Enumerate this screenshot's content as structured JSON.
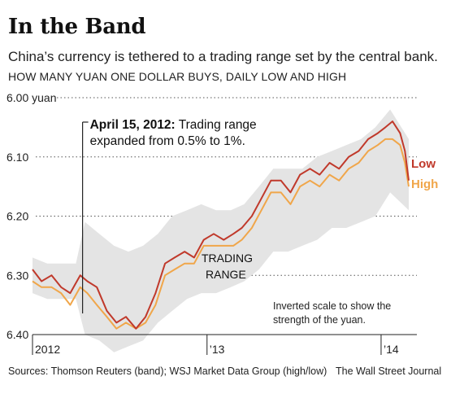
{
  "header": {
    "title": "In the Band",
    "subtitle": "China’s currency is tethered to a trading range set by the central bank.",
    "subhead": "HOW MANY YUAN ONE DOLLAR BUYS, DAILY LOW AND HIGH"
  },
  "footer": {
    "source": "Sources: Thomson Reuters (band); WSJ Market Data Group (high/low)",
    "credit": "The Wall Street Journal"
  },
  "chart_data": {
    "type": "line",
    "title": "In the Band",
    "ylabel": "yuan",
    "ylim": [
      6.0,
      6.4
    ],
    "y_inverted": true,
    "grid": true,
    "xlim": [
      "2012-01-01",
      "2014-02-28"
    ],
    "y_ticks": [
      {
        "value": 6.0,
        "label": "6.00 yuan"
      },
      {
        "value": 6.1,
        "label": "6.10"
      },
      {
        "value": 6.2,
        "label": "6.20"
      },
      {
        "value": 6.3,
        "label": "6.30"
      },
      {
        "value": 6.4,
        "label": "6.40"
      }
    ],
    "x_ticks": [
      {
        "value": "2012-01-01",
        "label": "2012"
      },
      {
        "value": "2013-01-01",
        "label": "’13"
      },
      {
        "value": "2014-01-01",
        "label": "’14"
      }
    ],
    "legend": [
      {
        "name": "Low",
        "color": "#c0392b"
      },
      {
        "name": "High",
        "color": "#f0a64a"
      }
    ],
    "band_label": "TRADING RANGE",
    "annotations": [
      {
        "date": "2012-04-15",
        "bold": "April 15, 2012:",
        "text": " Trading range",
        "text2": "expanded from 0.5% to 1%."
      },
      {
        "text": "Inverted scale to show the",
        "text2": "strength of the yuan."
      }
    ],
    "colors": {
      "low": "#c0392b",
      "high": "#f0a64a",
      "band": "#e4e4e4",
      "grid": "#555555"
    },
    "series": [
      {
        "name": "Low",
        "x": [
          "2012-01-01",
          "2012-01-20",
          "2012-02-10",
          "2012-03-01",
          "2012-03-20",
          "2012-04-10",
          "2012-04-25",
          "2012-05-15",
          "2012-06-05",
          "2012-06-25",
          "2012-07-15",
          "2012-08-05",
          "2012-08-25",
          "2012-09-15",
          "2012-10-05",
          "2012-10-25",
          "2012-11-15",
          "2012-12-05",
          "2012-12-25",
          "2013-01-15",
          "2013-02-05",
          "2013-02-25",
          "2013-03-15",
          "2013-04-05",
          "2013-04-25",
          "2013-05-15",
          "2013-06-05",
          "2013-06-25",
          "2013-07-15",
          "2013-08-05",
          "2013-08-25",
          "2013-09-15",
          "2013-10-05",
          "2013-10-25",
          "2013-11-15",
          "2013-12-05",
          "2013-12-25",
          "2014-01-10",
          "2014-01-25",
          "2014-02-10",
          "2014-02-20",
          "2014-02-28"
        ],
        "values": [
          6.29,
          6.31,
          6.3,
          6.32,
          6.33,
          6.3,
          6.31,
          6.32,
          6.36,
          6.38,
          6.37,
          6.39,
          6.37,
          6.33,
          6.28,
          6.27,
          6.26,
          6.27,
          6.24,
          6.23,
          6.24,
          6.23,
          6.22,
          6.2,
          6.17,
          6.14,
          6.14,
          6.16,
          6.13,
          6.12,
          6.13,
          6.11,
          6.12,
          6.1,
          6.09,
          6.07,
          6.06,
          6.05,
          6.04,
          6.06,
          6.09,
          6.14
        ]
      },
      {
        "name": "High",
        "x": [
          "2012-01-01",
          "2012-01-20",
          "2012-02-10",
          "2012-03-01",
          "2012-03-20",
          "2012-04-10",
          "2012-04-25",
          "2012-05-15",
          "2012-06-05",
          "2012-06-25",
          "2012-07-15",
          "2012-08-05",
          "2012-08-25",
          "2012-09-15",
          "2012-10-05",
          "2012-10-25",
          "2012-11-15",
          "2012-12-05",
          "2012-12-25",
          "2013-01-15",
          "2013-02-05",
          "2013-02-25",
          "2013-03-15",
          "2013-04-05",
          "2013-04-25",
          "2013-05-15",
          "2013-06-05",
          "2013-06-25",
          "2013-07-15",
          "2013-08-05",
          "2013-08-25",
          "2013-09-15",
          "2013-10-05",
          "2013-10-25",
          "2013-11-15",
          "2013-12-05",
          "2013-12-25",
          "2014-01-10",
          "2014-01-25",
          "2014-02-10",
          "2014-02-20",
          "2014-02-28"
        ],
        "values": [
          6.31,
          6.32,
          6.32,
          6.33,
          6.35,
          6.32,
          6.33,
          6.35,
          6.37,
          6.39,
          6.38,
          6.39,
          6.38,
          6.35,
          6.3,
          6.29,
          6.28,
          6.28,
          6.25,
          6.25,
          6.25,
          6.25,
          6.24,
          6.22,
          6.19,
          6.16,
          6.16,
          6.18,
          6.15,
          6.14,
          6.15,
          6.13,
          6.14,
          6.12,
          6.11,
          6.09,
          6.08,
          6.07,
          6.07,
          6.08,
          6.11,
          6.15
        ]
      },
      {
        "name": "Band upper",
        "x": [
          "2012-01-01",
          "2012-02-01",
          "2012-03-01",
          "2012-04-01",
          "2012-04-20",
          "2012-05-20",
          "2012-06-20",
          "2012-07-20",
          "2012-08-20",
          "2012-09-20",
          "2012-10-20",
          "2012-11-20",
          "2012-12-20",
          "2013-01-20",
          "2013-02-20",
          "2013-03-20",
          "2013-04-20",
          "2013-05-20",
          "2013-06-20",
          "2013-07-20",
          "2013-08-20",
          "2013-09-20",
          "2013-10-20",
          "2013-11-20",
          "2013-12-20",
          "2014-01-20",
          "2014-02-28"
        ],
        "values": [
          6.27,
          6.28,
          6.28,
          6.28,
          6.21,
          6.23,
          6.25,
          6.26,
          6.25,
          6.23,
          6.2,
          6.19,
          6.18,
          6.19,
          6.19,
          6.18,
          6.15,
          6.12,
          6.12,
          6.12,
          6.1,
          6.09,
          6.08,
          6.07,
          6.05,
          6.02,
          6.07
        ]
      },
      {
        "name": "Band lower",
        "x": [
          "2012-01-01",
          "2012-02-01",
          "2012-03-01",
          "2012-04-01",
          "2012-04-20",
          "2012-05-20",
          "2012-06-20",
          "2012-07-20",
          "2012-08-20",
          "2012-09-20",
          "2012-10-20",
          "2012-11-20",
          "2012-12-20",
          "2013-01-20",
          "2013-02-20",
          "2013-03-20",
          "2013-04-20",
          "2013-05-20",
          "2013-06-20",
          "2013-07-20",
          "2013-08-20",
          "2013-09-20",
          "2013-10-20",
          "2013-11-20",
          "2013-12-20",
          "2014-01-20",
          "2014-02-28"
        ],
        "values": [
          6.33,
          6.34,
          6.34,
          6.34,
          6.4,
          6.41,
          6.43,
          6.42,
          6.41,
          6.38,
          6.36,
          6.34,
          6.33,
          6.33,
          6.32,
          6.31,
          6.29,
          6.26,
          6.26,
          6.25,
          6.24,
          6.22,
          6.22,
          6.21,
          6.2,
          6.16,
          6.19
        ]
      }
    ]
  }
}
